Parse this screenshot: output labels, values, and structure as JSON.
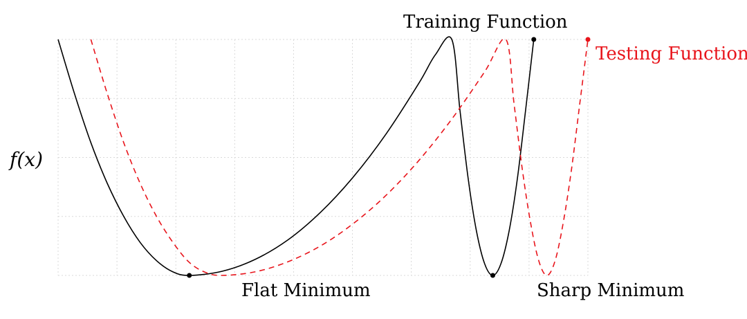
{
  "chart_data": {
    "type": "line",
    "title": "",
    "ylabel": "f(x)",
    "xlabel": "",
    "grid": true,
    "colors": {
      "training": "#000000",
      "testing": "#e8141b"
    },
    "series": [
      {
        "name": "Training Function",
        "style": "solid",
        "points": [
          [
            0.0,
            4.0
          ],
          [
            0.1,
            3.08
          ],
          [
            0.2,
            2.25
          ],
          [
            0.3,
            1.56
          ],
          [
            0.4,
            1.0
          ],
          [
            0.5,
            0.56
          ],
          [
            0.6,
            0.25
          ],
          [
            0.7,
            0.06
          ],
          [
            0.8,
            0.0
          ],
          [
            1.0,
            0.07
          ],
          [
            1.2,
            0.27
          ],
          [
            1.4,
            0.6
          ],
          [
            1.6,
            1.07
          ],
          [
            1.8,
            1.67
          ],
          [
            2.0,
            2.4
          ],
          [
            2.2,
            3.26
          ],
          [
            2.3,
            3.74
          ],
          [
            2.4,
            4.0
          ],
          [
            2.45,
            2.8
          ],
          [
            2.5,
            1.64
          ],
          [
            2.55,
            0.76
          ],
          [
            2.6,
            0.2
          ],
          [
            2.65,
            0.0
          ],
          [
            2.7,
            0.2
          ],
          [
            2.75,
            0.76
          ],
          [
            2.8,
            1.64
          ],
          [
            2.85,
            2.8
          ],
          [
            2.9,
            4.0
          ]
        ]
      },
      {
        "name": "Testing Function",
        "style": "dashed",
        "points": [
          [
            0.2,
            4.0
          ],
          [
            0.3,
            3.08
          ],
          [
            0.4,
            2.25
          ],
          [
            0.5,
            1.56
          ],
          [
            0.6,
            1.0
          ],
          [
            0.7,
            0.56
          ],
          [
            0.8,
            0.22
          ],
          [
            0.9,
            0.05
          ],
          [
            1.0,
            0.0
          ],
          [
            1.2,
            0.06
          ],
          [
            1.4,
            0.23
          ],
          [
            1.6,
            0.5
          ],
          [
            1.8,
            0.88
          ],
          [
            2.0,
            1.36
          ],
          [
            2.2,
            1.95
          ],
          [
            2.4,
            2.65
          ],
          [
            2.6,
            3.45
          ],
          [
            2.73,
            4.0
          ],
          [
            2.78,
            2.9
          ],
          [
            2.83,
            1.8
          ],
          [
            2.88,
            0.9
          ],
          [
            2.93,
            0.25
          ],
          [
            2.98,
            0.0
          ],
          [
            3.03,
            0.25
          ],
          [
            3.08,
            0.9
          ],
          [
            3.13,
            1.8
          ],
          [
            3.18,
            2.9
          ],
          [
            3.23,
            4.0
          ]
        ]
      }
    ],
    "markers": [
      {
        "series": "training",
        "x": 0.8,
        "y": 0.0
      },
      {
        "series": "training",
        "x": 2.65,
        "y": 0.0
      },
      {
        "series": "training",
        "x": 2.9,
        "y": 4.0
      },
      {
        "series": "testing",
        "x": 3.23,
        "y": 4.0
      }
    ],
    "xlim": [
      0.0,
      3.23
    ],
    "ylim": [
      0.0,
      4.0
    ],
    "annotations": {
      "training_label": "Training Function",
      "testing_label": "Testing Function",
      "flat_label": "Flat Minimum",
      "sharp_label": "Sharp Minimum"
    }
  }
}
